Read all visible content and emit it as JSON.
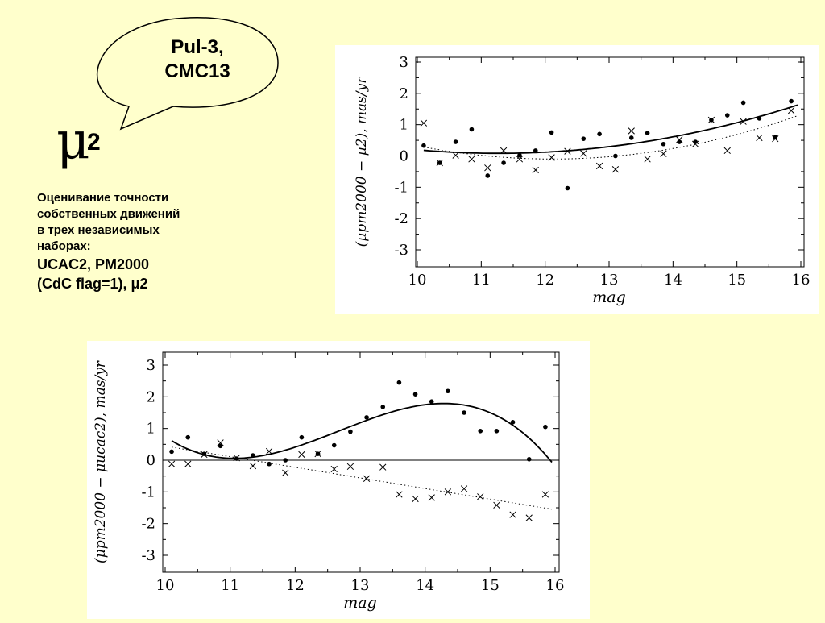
{
  "bubble": {
    "line1": "Pul-3,",
    "line2": "CMC13"
  },
  "symbol": {
    "mu": "μ",
    "sub": "2"
  },
  "description": {
    "lines": [
      "Оценивание точности",
      "собственных движений",
      "в трех независимых",
      "наборах:"
    ],
    "line5": "UCAC2, PM2000",
    "line6": "(CdC flag=1), μ2"
  },
  "chart_data": [
    {
      "type": "scatter",
      "title": "",
      "xlabel": "mag",
      "ylabel": "(μpm2000 − μ2), mas/yr",
      "xlim": [
        10,
        16
      ],
      "ylim": [
        -3,
        3
      ],
      "xticks": [
        "10",
        "11",
        "12",
        "13",
        "14",
        "15",
        "16"
      ],
      "yticks": [
        "3",
        "2",
        "1",
        "0",
        "-1",
        "-2",
        "-3"
      ],
      "series": [
        {
          "marker": "dot",
          "points": [
            [
              10.1,
              0.33
            ],
            [
              10.35,
              -0.22
            ],
            [
              10.6,
              0.45
            ],
            [
              10.85,
              0.85
            ],
            [
              11.1,
              -0.63
            ],
            [
              11.35,
              -0.22
            ],
            [
              11.6,
              0.02
            ],
            [
              11.85,
              0.17
            ],
            [
              12.1,
              0.75
            ],
            [
              12.35,
              -1.03
            ],
            [
              12.6,
              0.55
            ],
            [
              12.85,
              0.7
            ],
            [
              13.1,
              0.0
            ],
            [
              13.35,
              0.58
            ],
            [
              13.6,
              0.73
            ],
            [
              13.85,
              0.38
            ],
            [
              14.1,
              0.45
            ],
            [
              14.35,
              0.45
            ],
            [
              14.6,
              1.15
            ],
            [
              14.85,
              1.3
            ],
            [
              15.1,
              1.7
            ],
            [
              15.35,
              1.2
            ],
            [
              15.6,
              0.6
            ],
            [
              15.85,
              1.75
            ]
          ]
        },
        {
          "marker": "cross",
          "points": [
            [
              10.1,
              1.05
            ],
            [
              10.35,
              -0.22
            ],
            [
              10.6,
              0.02
            ],
            [
              10.85,
              -0.1
            ],
            [
              11.1,
              -0.38
            ],
            [
              11.35,
              0.17
            ],
            [
              11.6,
              -0.1
            ],
            [
              11.85,
              -0.45
            ],
            [
              12.1,
              -0.05
            ],
            [
              12.35,
              0.15
            ],
            [
              12.6,
              0.08
            ],
            [
              12.85,
              -0.32
            ],
            [
              13.1,
              -0.43
            ],
            [
              13.35,
              0.8
            ],
            [
              13.6,
              -0.1
            ],
            [
              13.85,
              0.07
            ],
            [
              14.1,
              0.52
            ],
            [
              14.35,
              0.38
            ],
            [
              14.6,
              1.15
            ],
            [
              14.85,
              0.17
            ],
            [
              15.1,
              1.1
            ],
            [
              15.35,
              0.58
            ],
            [
              15.6,
              0.55
            ],
            [
              15.85,
              1.45
            ]
          ]
        }
      ]
    },
    {
      "type": "scatter",
      "title": "",
      "xlabel": "mag",
      "ylabel": "(μpm2000 − μucac2), mas/yr",
      "xlim": [
        10,
        16
      ],
      "ylim": [
        -3,
        3
      ],
      "xticks": [
        "10",
        "11",
        "12",
        "13",
        "14",
        "15",
        "16"
      ],
      "yticks": [
        "3",
        "2",
        "1",
        "0",
        "-1",
        "-2",
        "-3"
      ],
      "series": [
        {
          "marker": "dot",
          "points": [
            [
              10.1,
              0.27
            ],
            [
              10.35,
              0.72
            ],
            [
              10.6,
              0.2
            ],
            [
              10.85,
              0.45
            ],
            [
              11.1,
              0.05
            ],
            [
              11.35,
              0.15
            ],
            [
              11.6,
              -0.12
            ],
            [
              11.85,
              0.0
            ],
            [
              12.1,
              0.72
            ],
            [
              12.35,
              0.2
            ],
            [
              12.6,
              0.47
            ],
            [
              12.85,
              0.9
            ],
            [
              13.1,
              1.35
            ],
            [
              13.35,
              1.68
            ],
            [
              13.6,
              2.45
            ],
            [
              13.85,
              2.08
            ],
            [
              14.1,
              1.85
            ],
            [
              14.35,
              2.18
            ],
            [
              14.6,
              1.5
            ],
            [
              14.85,
              0.92
            ],
            [
              15.1,
              0.92
            ],
            [
              15.35,
              1.2
            ],
            [
              15.6,
              0.03
            ],
            [
              15.85,
              1.05
            ]
          ]
        },
        {
          "marker": "cross",
          "points": [
            [
              10.1,
              -0.12
            ],
            [
              10.35,
              -0.12
            ],
            [
              10.6,
              0.18
            ],
            [
              10.85,
              0.55
            ],
            [
              11.1,
              0.07
            ],
            [
              11.35,
              -0.18
            ],
            [
              11.6,
              0.28
            ],
            [
              11.85,
              -0.4
            ],
            [
              12.1,
              0.18
            ],
            [
              12.35,
              0.2
            ],
            [
              12.6,
              -0.28
            ],
            [
              12.85,
              -0.2
            ],
            [
              13.1,
              -0.58
            ],
            [
              13.35,
              -0.22
            ],
            [
              13.6,
              -1.08
            ],
            [
              13.85,
              -1.22
            ],
            [
              14.1,
              -1.18
            ],
            [
              14.35,
              -1.0
            ],
            [
              14.6,
              -0.9
            ],
            [
              14.85,
              -1.15
            ],
            [
              15.1,
              -1.42
            ],
            [
              15.35,
              -1.72
            ],
            [
              15.6,
              -1.82
            ],
            [
              15.85,
              -1.08
            ]
          ]
        }
      ]
    }
  ]
}
